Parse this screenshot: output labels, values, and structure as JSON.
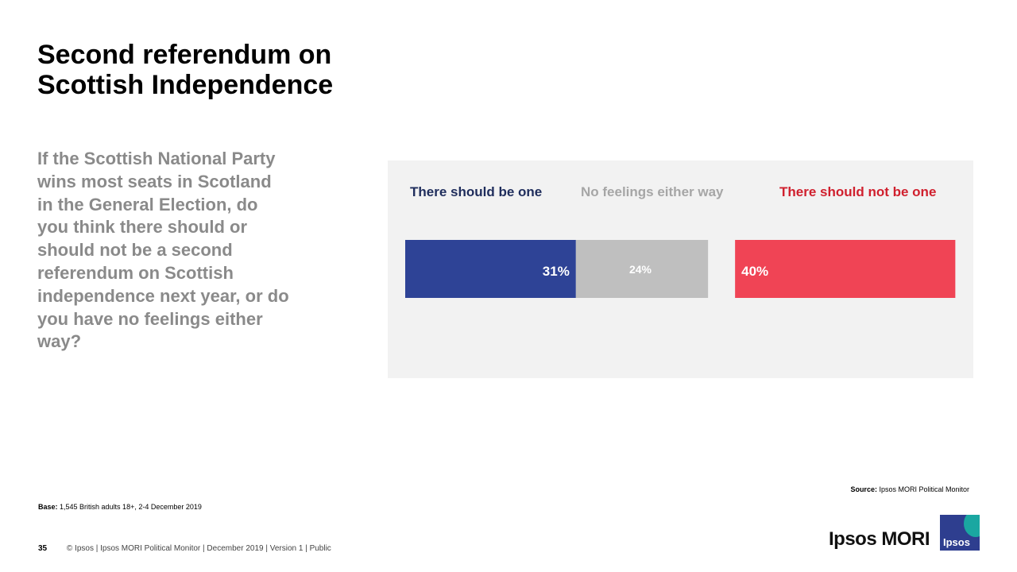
{
  "slide": {
    "title": "Second referendum on Scottish Independence",
    "question": "If the Scottish National Party wins most seats in Scotland in the General Election, do you think there should or should not be a second referendum on Scottish independence next year, or do you have no feelings either way?",
    "source_label": "Source:",
    "source_text": " Ipsos MORI Political Monitor",
    "base_label": "Base:",
    "base_text": " 1,545 British adults 18+, 2-4 December 2019",
    "page_number": "35",
    "footer_text": "© Ipsos | Ipsos MORI Political Monitor | December 2019 | Version 1 | Public",
    "logo_text": "Ipsos MORI",
    "logo_badge": "Ipsos"
  },
  "chart_data": {
    "type": "bar",
    "orientation": "horizontal-stacked",
    "series": [
      {
        "name": "There should be one",
        "value": 31,
        "label": "31%",
        "color": "#2e4396"
      },
      {
        "name": "No feelings either way",
        "value": 24,
        "label": "24%",
        "color": "#bfbfbf"
      },
      {
        "name": "There should not be one",
        "value": 40,
        "label": "40%",
        "color": "#f04455"
      }
    ],
    "legend_colors": [
      "#1f2d5c",
      "#a6a6a6",
      "#d0202e"
    ],
    "unit": "%"
  }
}
